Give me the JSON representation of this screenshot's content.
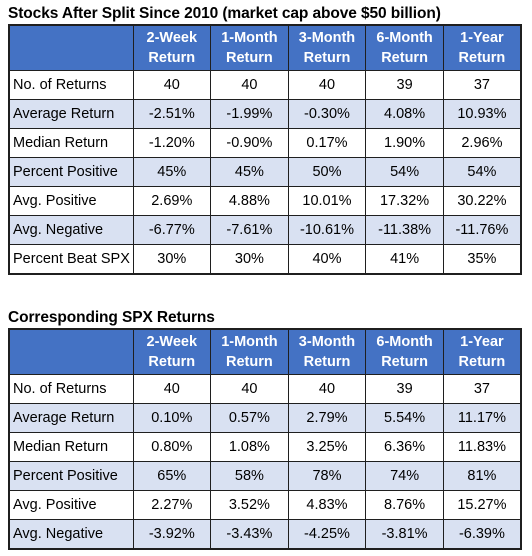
{
  "table1": {
    "title": "Stocks After Split Since 2010 (market cap above $50 billion)",
    "headers": [
      {
        "line1": "2-Week",
        "line2": "Return"
      },
      {
        "line1": "1-Month",
        "line2": "Return"
      },
      {
        "line1": "3-Month",
        "line2": "Return"
      },
      {
        "line1": "6-Month",
        "line2": "Return"
      },
      {
        "line1": "1-Year",
        "line2": "Return"
      }
    ],
    "rows": [
      {
        "label": "No. of Returns",
        "values": [
          "40",
          "40",
          "40",
          "39",
          "37"
        ]
      },
      {
        "label": "Average Return",
        "values": [
          "-2.51%",
          "-1.99%",
          "-0.30%",
          "4.08%",
          "10.93%"
        ]
      },
      {
        "label": "Median Return",
        "values": [
          "-1.20%",
          "-0.90%",
          "0.17%",
          "1.90%",
          "2.96%"
        ]
      },
      {
        "label": "Percent Positive",
        "values": [
          "45%",
          "45%",
          "50%",
          "54%",
          "54%"
        ]
      },
      {
        "label": "Avg. Positive",
        "values": [
          "2.69%",
          "4.88%",
          "10.01%",
          "17.32%",
          "30.22%"
        ]
      },
      {
        "label": "Avg. Negative",
        "values": [
          "-6.77%",
          "-7.61%",
          "-10.61%",
          "-11.38%",
          "-11.76%"
        ]
      },
      {
        "label": "Percent Beat SPX",
        "values": [
          "30%",
          "30%",
          "40%",
          "41%",
          "35%"
        ]
      }
    ]
  },
  "table2": {
    "title": "Corresponding SPX Returns",
    "headers": [
      {
        "line1": "2-Week",
        "line2": "Return"
      },
      {
        "line1": "1-Month",
        "line2": "Return"
      },
      {
        "line1": "3-Month",
        "line2": "Return"
      },
      {
        "line1": "6-Month",
        "line2": "Return"
      },
      {
        "line1": "1-Year",
        "line2": "Return"
      }
    ],
    "rows": [
      {
        "label": "No. of Returns",
        "values": [
          "40",
          "40",
          "40",
          "39",
          "37"
        ]
      },
      {
        "label": "Average Return",
        "values": [
          "0.10%",
          "0.57%",
          "2.79%",
          "5.54%",
          "11.17%"
        ]
      },
      {
        "label": "Median Return",
        "values": [
          "0.80%",
          "1.08%",
          "3.25%",
          "6.36%",
          "11.83%"
        ]
      },
      {
        "label": "Percent Positive",
        "values": [
          "65%",
          "58%",
          "78%",
          "74%",
          "81%"
        ]
      },
      {
        "label": "Avg. Positive",
        "values": [
          "2.27%",
          "3.52%",
          "4.83%",
          "8.76%",
          "15.27%"
        ]
      },
      {
        "label": "Avg. Negative",
        "values": [
          "-3.92%",
          "-3.43%",
          "-4.25%",
          "-3.81%",
          "-6.39%"
        ]
      }
    ]
  },
  "colors": {
    "header_bg": "#4472c4",
    "header_text": "#ffffff",
    "stripe": "#d9e1f2",
    "border": "#1f1f1f"
  }
}
